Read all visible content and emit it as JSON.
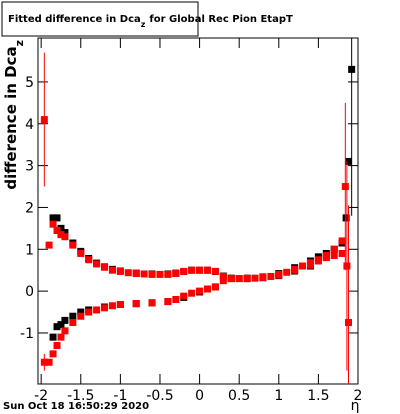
{
  "chart_data": {
    "type": "scatter",
    "title": {
      "text": "Fitted difference in Dca",
      "sub": "z",
      "tail": "for Global Rec Pion EtapT"
    },
    "ylabel": {
      "text": "difference in Dca",
      "sub": "z"
    },
    "xlabel": "η",
    "footer": "Sun Oct 18 16:50:29 2020",
    "xlim": [
      -2.04,
      2.0
    ],
    "ylim": [
      -2.22,
      6.05
    ],
    "xticks": [
      -2,
      -1.5,
      -1,
      -0.5,
      0,
      0.5,
      1,
      1.5,
      2
    ],
    "yticks": [
      -1,
      0,
      1,
      2,
      3,
      4,
      5
    ],
    "series": [
      {
        "color": "#000000",
        "x": [
          -1.85,
          -1.8,
          -1.75,
          -1.7,
          -1.6,
          -1.5,
          -1.4,
          -1.3,
          -1.2,
          -1.1,
          -1.0,
          -0.8,
          -0.6,
          -0.4,
          -0.3,
          -0.2,
          -0.1,
          0,
          0.1,
          0.2,
          0.3,
          0.4,
          0.6,
          0.8,
          1.0,
          1.2,
          1.4,
          1.5,
          1.6,
          1.7,
          1.8,
          1.85,
          1.88,
          1.92,
          -1.85,
          -1.8,
          -1.75,
          -1.7,
          -1.6,
          -1.5,
          -1.4,
          -1.2,
          -1.0,
          -0.8,
          -0.6,
          -0.4,
          -0.2,
          0,
          0.2,
          0.4,
          0.6,
          0.8,
          1.0,
          1.2,
          1.4,
          1.6,
          1.8
        ],
        "values": [
          1.75,
          1.75,
          1.5,
          1.4,
          1.15,
          0.95,
          0.78,
          0.67,
          0.58,
          0.52,
          0.48,
          0.43,
          0.41,
          0.41,
          0.43,
          0.47,
          0.5,
          0.5,
          0.5,
          0.47,
          0.36,
          0.31,
          0.31,
          0.34,
          0.42,
          0.56,
          0.72,
          0.82,
          0.9,
          1.0,
          1.15,
          1.75,
          3.1,
          5.3,
          -1.1,
          -0.85,
          -0.8,
          -0.7,
          -0.6,
          -0.5,
          -0.45,
          -0.38,
          -0.32,
          -0.3,
          -0.28,
          -0.25,
          -0.15,
          -0.02,
          0.1,
          0.3,
          0.3,
          0.32,
          0.37,
          0.48,
          0.6,
          0.82,
          1.15
        ],
        "errors": [
          0,
          0,
          0,
          0,
          0,
          0,
          0,
          0,
          0,
          0,
          0,
          0,
          0,
          0,
          0,
          0,
          0,
          0,
          0,
          0,
          0,
          0,
          0,
          0,
          0,
          0,
          0,
          0,
          0,
          0,
          0,
          0,
          0,
          3.5,
          0,
          0,
          0,
          0,
          0,
          0,
          0,
          0,
          0,
          0,
          0,
          0,
          0,
          0,
          0,
          0,
          0,
          0,
          0,
          0,
          0,
          0,
          0
        ]
      },
      {
        "color": "#ff0000",
        "x": [
          -1.96,
          -1.9,
          -1.85,
          -1.8,
          -1.75,
          -1.7,
          -1.6,
          -1.5,
          -1.4,
          -1.3,
          -1.2,
          -1.1,
          -1.0,
          -0.9,
          -0.8,
          -0.7,
          -0.6,
          -0.5,
          -0.4,
          -0.3,
          -0.2,
          -0.1,
          0,
          0.1,
          0.2,
          0.3,
          0.4,
          0.5,
          0.6,
          0.7,
          0.8,
          0.9,
          1.0,
          1.1,
          1.2,
          1.3,
          1.4,
          1.5,
          1.6,
          1.7,
          1.8,
          1.84,
          1.86,
          -1.96,
          -1.9,
          -1.85,
          -1.8,
          -1.75,
          -1.7,
          -1.6,
          -1.5,
          -1.4,
          -1.3,
          -1.2,
          -1.1,
          -1.0,
          -0.8,
          -0.6,
          -0.4,
          -0.3,
          -0.2,
          -0.1,
          0,
          0.1,
          0.2,
          0.3,
          0.4,
          0.5,
          0.6,
          0.8,
          1.0,
          1.2,
          1.4,
          1.5,
          1.6,
          1.7,
          1.8,
          1.88
        ],
        "values": [
          4.1,
          1.1,
          1.6,
          1.45,
          1.35,
          1.3,
          1.1,
          0.9,
          0.75,
          0.65,
          0.57,
          0.5,
          0.47,
          0.44,
          0.42,
          0.41,
          0.4,
          0.4,
          0.4,
          0.42,
          0.47,
          0.5,
          0.5,
          0.5,
          0.47,
          0.35,
          0.3,
          0.3,
          0.3,
          0.31,
          0.33,
          0.35,
          0.4,
          0.45,
          0.52,
          0.6,
          0.68,
          0.75,
          0.8,
          0.85,
          0.9,
          2.5,
          0.6,
          -1.7,
          -1.7,
          -1.5,
          -1.3,
          -1.1,
          -0.95,
          -0.75,
          -0.6,
          -0.5,
          -0.45,
          -0.4,
          -0.35,
          -0.32,
          -0.3,
          -0.28,
          -0.25,
          -0.2,
          -0.12,
          -0.05,
          0,
          0.05,
          0.1,
          0.25,
          0.3,
          0.3,
          0.3,
          0.33,
          0.38,
          0.5,
          0.62,
          0.72,
          0.85,
          1.0,
          1.2,
          -0.75
        ],
        "errors": [
          1.6,
          0,
          0,
          0,
          0,
          0,
          0,
          0,
          0,
          0,
          0,
          0,
          0,
          0,
          0,
          0,
          0,
          0,
          0,
          0,
          0,
          0,
          0,
          0,
          0,
          0,
          0,
          0,
          0,
          0,
          0,
          0,
          0,
          0,
          0,
          0,
          0,
          0,
          0,
          0,
          0,
          2.0,
          2.5,
          0.2,
          0,
          0,
          0,
          0,
          0,
          0,
          0,
          0,
          0,
          0,
          0,
          0,
          0,
          0,
          0,
          0,
          0,
          0,
          0,
          0,
          0,
          0,
          0,
          0,
          0,
          0,
          0,
          0,
          0,
          0,
          0,
          0,
          0,
          2.8
        ]
      }
    ]
  }
}
